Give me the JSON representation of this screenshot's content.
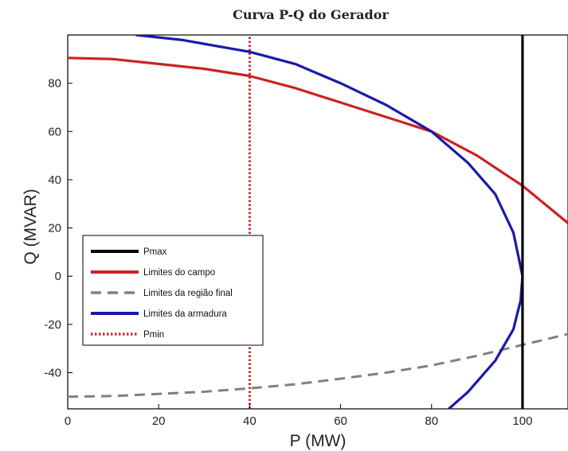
{
  "chart_data": {
    "type": "line",
    "title": "Curva P-Q do Gerador",
    "xlabel": "P (MW)",
    "ylabel": "Q (MVAR)",
    "xlim": [
      0,
      110
    ],
    "ylim": [
      -55,
      100
    ],
    "xticks": [
      0,
      20,
      40,
      60,
      80,
      100
    ],
    "yticks": [
      -40,
      -20,
      0,
      20,
      40,
      60,
      80
    ],
    "grid": false,
    "legend_position": "lower-left",
    "series": [
      {
        "name": "Pmax",
        "color": "#000000",
        "style": "solid",
        "x": [
          100,
          100
        ],
        "y": [
          -55,
          100
        ]
      },
      {
        "name": "Limites do campo",
        "color": "#cc2222",
        "style": "solid",
        "x": [
          0,
          10,
          20,
          30,
          40,
          50,
          60,
          70,
          80,
          90,
          100,
          110
        ],
        "y": [
          90.5,
          90,
          88,
          86,
          83,
          78,
          72,
          66,
          60,
          50,
          37.5,
          22
        ]
      },
      {
        "name": "Limites da região final",
        "color": "#808080",
        "style": "dashed",
        "x": [
          0,
          10,
          20,
          30,
          40,
          50,
          60,
          70,
          80,
          90,
          100,
          110
        ],
        "y": [
          -50,
          -49.7,
          -48.8,
          -47.9,
          -46.5,
          -44.8,
          -42.5,
          -40,
          -37,
          -33,
          -28.5,
          -24
        ]
      },
      {
        "name": "Limites da armadura",
        "color": "#1a1aaa",
        "style": "solid",
        "x": [
          15,
          25,
          40,
          50,
          60,
          70,
          80,
          88,
          94,
          98,
          100,
          99.6,
          98,
          94,
          88,
          82
        ],
        "y": [
          100,
          98,
          93,
          88,
          80,
          71,
          60,
          47,
          34,
          18,
          0,
          -10,
          -22,
          -35,
          -48,
          -58
        ]
      },
      {
        "name": "Pmin",
        "color": "#c43030",
        "style": "dotted",
        "x": [
          40,
          40
        ],
        "y": [
          -55,
          100
        ]
      }
    ]
  }
}
